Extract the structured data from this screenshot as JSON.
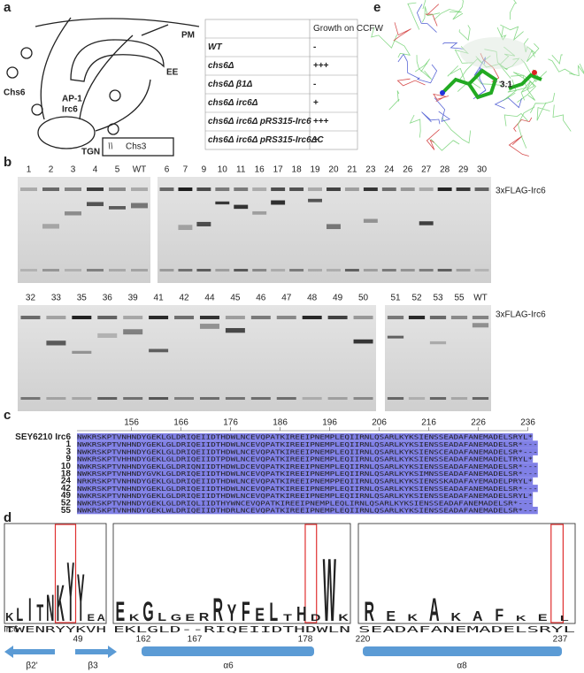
{
  "panel_a": {
    "label": "a",
    "diagram": {
      "pm": "PM",
      "ee": "EE",
      "chs6": "Chs6",
      "ap1": "AP-1",
      "irc6": "Irc6",
      "tgn": "TGN",
      "legend": "Chs3"
    },
    "table": {
      "header": "Growth on CCFW",
      "rows": [
        [
          "WT",
          "-"
        ],
        [
          "chs6Δ",
          "+++"
        ],
        [
          "chs6Δ β1Δ",
          "-"
        ],
        [
          "chs6Δ irc6Δ",
          "+"
        ],
        [
          "chs6Δ irc6Δ pRS315-Irc6",
          "+++"
        ],
        [
          "chs6Δ irc6Δ pRS315-Irc6ΔC",
          "+"
        ]
      ]
    }
  },
  "panel_e": {
    "label": "e",
    "annotation": "3.1"
  },
  "panel_b": {
    "label": "b",
    "band_label": "3xFLAG-Irc6",
    "gels": [
      {
        "lanes": [
          "1",
          "2",
          "3",
          "4",
          "5",
          "WT"
        ]
      },
      {
        "lanes": [
          "6",
          "7",
          "9",
          "10",
          "11",
          "16",
          "17",
          "18",
          "19",
          "20",
          "21",
          "23",
          "24",
          "26",
          "27",
          "28",
          "29",
          "30"
        ]
      },
      {
        "lanes": [
          "32",
          "33",
          "35",
          "36",
          "39",
          "41",
          "42",
          "44",
          "45",
          "46",
          "47",
          "48",
          "49",
          "50"
        ]
      },
      {
        "lanes": [
          "51",
          "52",
          "53",
          "55",
          "WT"
        ]
      }
    ]
  },
  "panel_c": {
    "label": "c",
    "ruler": [
      156,
      166,
      176,
      186,
      196,
      206,
      216,
      226,
      236
    ],
    "rows": [
      {
        "name": "SEY6210 Irc6",
        "sequence": "NWKRSKPTVNHNDYGEKLGLDRIQEIIDTHDWLNCEVQPATKIREEIPNEMPLEQIIRNLQSARLKYKSIENSSEADAFANEMADELSRYL*"
      },
      {
        "name": "1",
        "sequence": "NWKRSKPTVNHNDYGEKLGLDRIQEIIDTHDWLNCEVQPATKIREEIPNEMPLEQIIRNLQSARLKYKSIENSSEADAFANEMADELSR*---"
      },
      {
        "name": "3",
        "sequence": "NWKRSKPTVNHNDYGEKLGLDRIQEIIDTHDWLNCEVQPATKIREEIPNEMPLEQIIRNLQSARLKYKSIENSCEADAFANEMADELSR*---"
      },
      {
        "name": "9",
        "sequence": "NWKRSKPTVHHNDYGEKLGLDRIQEIIDTPDWLNCEVQPATKIREEIPNEMPLEQIIRNLQSARLKYKSIENSSEADAFANEMADELTRYL*"
      },
      {
        "name": "10",
        "sequence": "NWKRSKPTVNHNDYGEKLGLDRIQNIIDTHDWLDCEVQPATKIREEIPNEMPLEQIIRNLQSARLKYKSIENSSEADAFANEMADELSR*---"
      },
      {
        "name": "18",
        "sequence": "NWKRSKPTVNHNDYGVKLGLDRIQEIIDTHDWLNCEVQPATKIREEIPNEMPLEQIIRNLQSARLKYKSIMNSSEADAFANEMADELSR*---"
      },
      {
        "name": "24",
        "sequence": "NRKRSKPTVNHNDYGEKLGLDRIQEIIDTHDWLNCEVQPATKIREEIPNEMPPEQIIRNLQSARLKYKSIENSSKADAFAYEMADELPRYL*"
      },
      {
        "name": "42",
        "sequence": "NWKRSKPTVNHNDYGEKLGLDRIQEIIDTHDWLNCEVQPATKIREEIPNEMPLEQIIRNLQSARLKYKSIENSSEADAFANEMADELSR*---"
      },
      {
        "name": "49",
        "sequence": "NWKRSKPTVNHNDYGEKLGLDRIQEIIDTHDWLNCEVQPATKIREEIPNEMPLEQIIRNLQSARLKYKSIENSSEADAFANEMADELSRYL*"
      },
      {
        "name": "52",
        "sequence": "NWKRSKPTVNHNDYGEKLGLDRIQLIIDTHYWNCEVQPATKIREEIPNEMPLEQLIRNLQSARLKYKSIENSSEADAFANEMADELSR*---"
      },
      {
        "name": "55",
        "sequence": "NWKRSKPTVNHNDYGEKLWLDRIQEIIDTHDRLNCEVQPATKIREEIPNEMPLEQIIRNLQSARLKYKSIENSSEADAFANEMADELSR*---"
      }
    ]
  },
  "panel_d": {
    "label": "d",
    "row_label": "Irc6",
    "logos": [
      {
        "sequence": "TWENRYYKVH",
        "letters": [
          [
            "K",
            0.12
          ],
          [
            "L",
            0.2
          ],
          [
            "I",
            0.35
          ],
          [
            "T",
            0.25
          ],
          [
            "N",
            0.4
          ],
          [
            "K",
            0.55
          ],
          [
            "Y",
            0.9
          ],
          [
            "Y",
            0.72
          ],
          [
            "E",
            0.1
          ],
          [
            "A",
            0.1
          ]
        ]
      },
      {
        "sequence": "EKLGLD--RIQEIIDTHDWLN",
        "letters": [
          [
            "E",
            0.3
          ],
          [
            "K",
            0.1
          ],
          [
            "G",
            0.3
          ],
          [
            "L",
            0.12
          ],
          [
            "G",
            0.1
          ],
          [
            "E",
            0.1
          ],
          [
            "R",
            0.12
          ],
          [
            "R",
            0.35
          ],
          [
            "Y",
            0.25
          ],
          [
            "F",
            0.3
          ],
          [
            "E",
            0.2
          ],
          [
            "L",
            0.28
          ],
          [
            "T",
            0.1
          ],
          [
            "H",
            0.22
          ],
          [
            "D",
            0.1
          ],
          [
            "W",
            0.95
          ],
          [
            "K",
            0.1
          ]
        ]
      },
      {
        "sequence": "SEADAFANEMADELSRYL",
        "letters": [
          [
            "R",
            0.3
          ],
          [
            "E",
            0.15
          ],
          [
            "K",
            0.1
          ],
          [
            "A",
            0.35
          ],
          [
            "K",
            0.12
          ],
          [
            "A",
            0.15
          ],
          [
            "F",
            0.18
          ],
          [
            "K",
            0.08
          ],
          [
            "E",
            0.1
          ],
          [
            "L",
            0.08
          ]
        ]
      }
    ],
    "positions": [
      "49",
      "162",
      "167",
      "178",
      "220",
      "237"
    ],
    "structures": [
      "β2'",
      "β3",
      "α6",
      "α8"
    ]
  }
}
